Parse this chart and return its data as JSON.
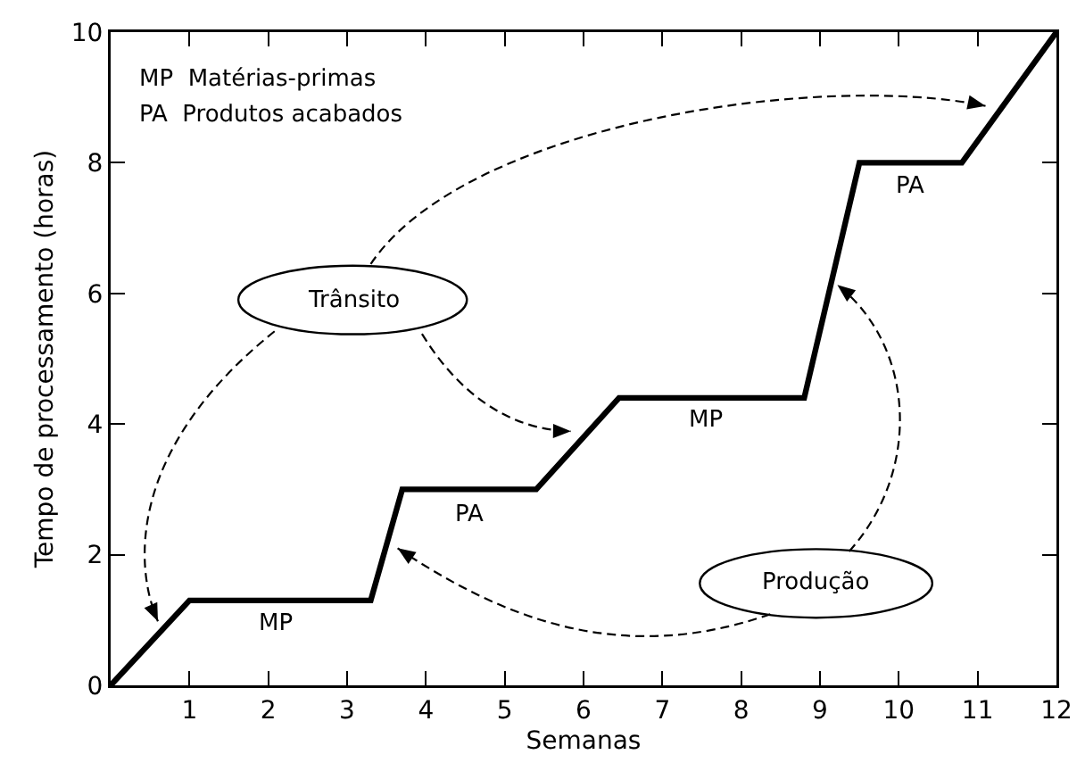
{
  "chart_data": {
    "type": "line",
    "xlabel": "Semanas",
    "ylabel": "Tempo de processamento (horas)",
    "x": [
      0,
      1,
      3.3,
      3.7,
      5.4,
      6.45,
      8.8,
      9.5,
      10.8,
      12
    ],
    "series": [
      {
        "color": "#000000",
        "values": [
          0,
          1.3,
          1.3,
          3,
          3,
          4.4,
          4.4,
          8,
          8,
          10
        ]
      }
    ],
    "xlim": [
      0,
      12
    ],
    "xticks": [
      1,
      2,
      3,
      4,
      5,
      6,
      7,
      8,
      9,
      10,
      11,
      12
    ],
    "ylim": [
      0,
      10
    ],
    "yticks": [
      0,
      2,
      4,
      6,
      8,
      10
    ],
    "grid": false,
    "marker": "none",
    "line_style": "solid",
    "annotations": [
      "MP  Matérias-primas",
      "PA  Produtos acabados",
      "Trânsito",
      {
        "text": "Produção",
        "x": 9.22,
        "y": 6.13
      },
      "MP",
      "PA",
      "MP",
      "PA"
    ]
  }
}
